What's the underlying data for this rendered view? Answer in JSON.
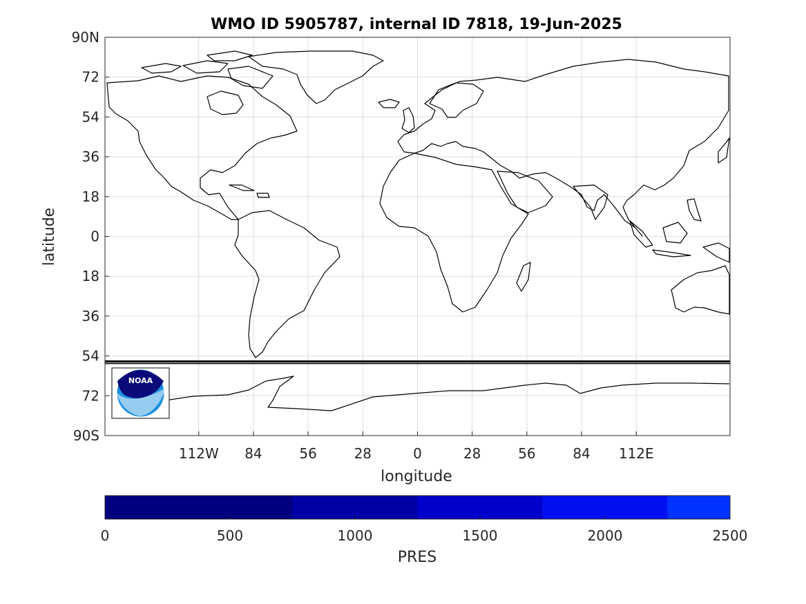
{
  "title": "WMO ID 5905787, internal ID 7818, 19-Jun-2025",
  "map": {
    "xlabel": "longitude",
    "ylabel": "latitude",
    "lon_range": [
      -160,
      160
    ],
    "lat_range": [
      -90,
      90
    ],
    "lat_ticks": [
      90,
      72,
      54,
      36,
      18,
      0,
      -18,
      -36,
      -54,
      -72,
      -90
    ],
    "lat_tick_labels": [
      "90N",
      "72",
      "54",
      "36",
      "18",
      "0",
      "18",
      "36",
      "54",
      "72",
      "90S"
    ],
    "lon_ticks": [
      -112,
      -84,
      -56,
      -28,
      0,
      28,
      56,
      84,
      112
    ],
    "lon_tick_labels": [
      "112W",
      "84",
      "56",
      "28",
      "0",
      "28",
      "56",
      "84",
      "112E"
    ],
    "grid": true,
    "track_latitude": -56.5,
    "track_color": "#000000",
    "logo": {
      "text": "NOAA",
      "colors": {
        "dark": "#0a0a7a",
        "light": "#1a8fe0"
      }
    }
  },
  "colorbar": {
    "label": "PRES",
    "range": [
      0,
      2500
    ],
    "ticks": [
      0,
      500,
      1000,
      1500,
      2000,
      2500
    ],
    "bins": [
      {
        "from": 0,
        "to": 750,
        "color": "#000080"
      },
      {
        "from": 750,
        "to": 1250,
        "color": "#0000a6"
      },
      {
        "from": 1250,
        "to": 1750,
        "color": "#0000cc"
      },
      {
        "from": 1750,
        "to": 2250,
        "color": "#0010f0"
      },
      {
        "from": 2250,
        "to": 2500,
        "color": "#0033ff"
      }
    ]
  }
}
